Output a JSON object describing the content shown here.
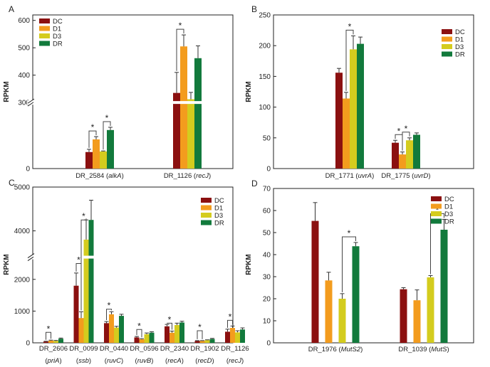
{
  "chart_data": [
    {
      "type": "bar",
      "panel": "A",
      "ylabel": "RPKM",
      "axis_break": [
        120,
        300
      ],
      "ylim": [
        0,
        620
      ],
      "yticks": [
        0,
        300,
        400,
        500,
        600
      ],
      "ytick_labels": [
        "0",
        "300",
        "400",
        "500",
        "600"
      ],
      "categories": [
        {
          "name": "DR_2584",
          "gene": "alkA"
        },
        {
          "name": "DR_1126",
          "gene": "recJ"
        }
      ],
      "series": [
        {
          "name": "DC",
          "color": "#8B1010",
          "values": [
            30,
            335
          ],
          "errors": [
            5,
            75
          ]
        },
        {
          "name": "D1",
          "color": "#F39C1E",
          "values": [
            53,
            505
          ],
          "errors": [
            5,
            42
          ]
        },
        {
          "name": "D3",
          "color": "#D4CC1E",
          "values": [
            31,
            312
          ],
          "errors": [
            1,
            25
          ]
        },
        {
          "name": "DR",
          "color": "#127A3C",
          "values": [
            70,
            462
          ],
          "errors": [
            5,
            45
          ]
        }
      ],
      "significance": [
        {
          "cat": 0,
          "from": 0,
          "to": 1
        },
        {
          "cat": 0,
          "from": 2,
          "to": 3
        },
        {
          "cat": 1,
          "from": 0,
          "to": 1
        }
      ],
      "star": "*",
      "legend": "top-left"
    },
    {
      "type": "bar",
      "panel": "B",
      "ylabel": "RPKM",
      "ylim": [
        0,
        250
      ],
      "yticks": [
        0,
        50,
        100,
        150,
        200,
        250
      ],
      "ytick_labels": [
        "0",
        "50",
        "100",
        "150",
        "200",
        "250"
      ],
      "categories": [
        {
          "name": "DR_1771",
          "gene": "uvrA"
        },
        {
          "name": "DR_1775",
          "gene": "uvrD"
        }
      ],
      "series": [
        {
          "name": "DC",
          "color": "#8B1010",
          "values": [
            156,
            42
          ],
          "errors": [
            7,
            4
          ]
        },
        {
          "name": "D1",
          "color": "#F39C1E",
          "values": [
            114,
            23
          ],
          "errors": [
            10,
            4
          ]
        },
        {
          "name": "D3",
          "color": "#D4CC1E",
          "values": [
            194,
            46
          ],
          "errors": [
            22,
            4
          ]
        },
        {
          "name": "DR",
          "color": "#127A3C",
          "values": [
            203,
            55
          ],
          "errors": [
            11,
            3
          ]
        }
      ],
      "significance": [
        {
          "cat": 0,
          "from": 1,
          "to": 2
        },
        {
          "cat": 1,
          "from": 0,
          "to": 1
        },
        {
          "cat": 1,
          "from": 1,
          "to": 2
        }
      ],
      "star": "*",
      "legend": "top-right"
    },
    {
      "type": "bar",
      "panel": "C",
      "ylabel": "RPKM",
      "axis_break": [
        2700,
        3400
      ],
      "ylim": [
        0,
        5000
      ],
      "yticks": [
        0,
        1000,
        2000,
        4000,
        5000
      ],
      "ytick_labels": [
        "0",
        "1000",
        "2000",
        "4000",
        "5000"
      ],
      "categories": [
        {
          "name": "DR_2606",
          "gene": "priA"
        },
        {
          "name": "DR_0099",
          "gene": "ssb"
        },
        {
          "name": "DR_0440",
          "gene": "ruvC"
        },
        {
          "name": "DR_0596",
          "gene": "ruvB"
        },
        {
          "name": "DR_2340",
          "gene": "recA"
        },
        {
          "name": "DR_1902",
          "gene": "recD"
        },
        {
          "name": "DR_1126",
          "gene": "recJ"
        }
      ],
      "series": [
        {
          "name": "DC",
          "color": "#8B1010",
          "values": [
            40,
            1800,
            620,
            170,
            520,
            60,
            350
          ],
          "errors": [
            10,
            400,
            50,
            30,
            60,
            10,
            80
          ]
        },
        {
          "name": "D1",
          "color": "#F39C1E",
          "values": [
            70,
            780,
            900,
            110,
            320,
            60,
            470
          ],
          "errors": [
            15,
            200,
            80,
            20,
            50,
            10,
            60
          ]
        },
        {
          "name": "D3",
          "color": "#D4CC1E",
          "values": [
            60,
            3800,
            480,
            270,
            560,
            80,
            330
          ],
          "errors": [
            15,
            450,
            40,
            40,
            60,
            15,
            50
          ]
        },
        {
          "name": "DR",
          "color": "#127A3C",
          "values": [
            130,
            4250,
            850,
            320,
            640,
            120,
            420
          ],
          "errors": [
            20,
            450,
            50,
            30,
            40,
            20,
            50
          ]
        }
      ],
      "significance": [
        {
          "cat": 0,
          "from": 0,
          "to": 1,
          "y": 330
        },
        {
          "cat": 1,
          "from": 0,
          "to": 1,
          "y": 2500
        },
        {
          "cat": 1,
          "from": 1,
          "to": 2,
          "y": 4250
        },
        {
          "cat": 2,
          "from": 0,
          "to": 1,
          "y": 1060
        },
        {
          "cat": 3,
          "from": 0,
          "to": 1,
          "y": 420
        },
        {
          "cat": 4,
          "from": 0,
          "to": 1,
          "y": 620
        },
        {
          "cat": 5,
          "from": 0,
          "to": 1,
          "y": 380
        },
        {
          "cat": 6,
          "from": 0,
          "to": 1,
          "y": 710
        }
      ],
      "star": "*",
      "legend": "top-right"
    },
    {
      "type": "bar",
      "panel": "D",
      "ylabel": "RPKM",
      "ylim": [
        0,
        70
      ],
      "yticks": [
        0,
        10,
        20,
        30,
        40,
        50,
        60,
        70
      ],
      "ytick_labels": [
        "0",
        "10",
        "20",
        "30",
        "40",
        "50",
        "60",
        "70"
      ],
      "categories": [
        {
          "name": "DR_1976",
          "gene": "MutS2"
        },
        {
          "name": "DR_1039",
          "gene": "MutS"
        }
      ],
      "series": [
        {
          "name": "DC",
          "color": "#8B1010",
          "values": [
            55.3,
            24.3
          ],
          "errors": [
            8.3,
            0.7
          ]
        },
        {
          "name": "D1",
          "color": "#F39C1E",
          "values": [
            28.3,
            19.3
          ],
          "errors": [
            3.7,
            4.7
          ]
        },
        {
          "name": "D3",
          "color": "#D4CC1E",
          "values": [
            20.0,
            29.7
          ],
          "errors": [
            2.3,
            0.8
          ]
        },
        {
          "name": "DR",
          "color": "#127A3C",
          "values": [
            43.8,
            51.3
          ],
          "errors": [
            1.7,
            4.7
          ]
        }
      ],
      "significance": [
        {
          "cat": 0,
          "from": 2,
          "to": 3
        },
        {
          "cat": 1,
          "from": 2,
          "to": 3
        }
      ],
      "star": "*",
      "legend": "top-right"
    }
  ]
}
